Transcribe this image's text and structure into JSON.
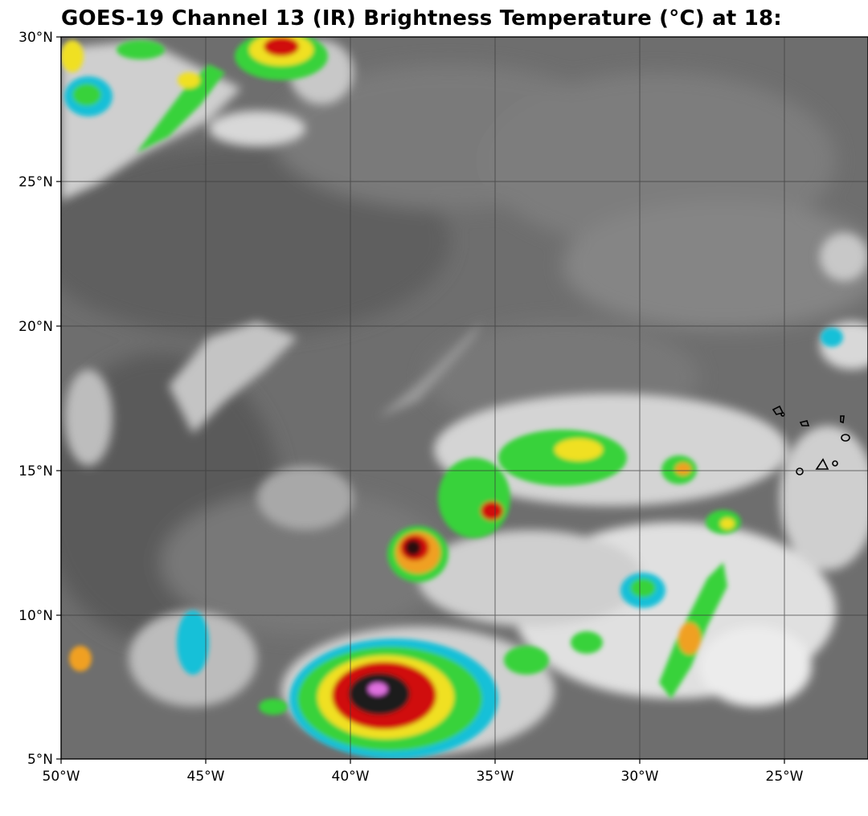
{
  "title": "GOES-19 Channel 13 (IR) Brightness Temperature (°C) at 18:",
  "map": {
    "projection": "PlateCarree",
    "lon_range": [
      -50,
      -22
    ],
    "lat_range": [
      5,
      30
    ],
    "gridlines": true,
    "colormap": "grayscale warm, rainbow cold (green-yellow-red-black-magenta)",
    "lat_ticks": [
      {
        "value": 30,
        "label": "30°N"
      },
      {
        "value": 25,
        "label": "25°N"
      },
      {
        "value": 20,
        "label": "20°N"
      },
      {
        "value": 15,
        "label": "15°N"
      },
      {
        "value": 10,
        "label": "10°N"
      },
      {
        "value": 5,
        "label": "5°N"
      }
    ],
    "lon_ticks": [
      {
        "value": -50,
        "label": "50°W"
      },
      {
        "value": -45,
        "label": "45°W"
      },
      {
        "value": -40,
        "label": "40°W"
      },
      {
        "value": -35,
        "label": "35°W"
      },
      {
        "value": -30,
        "label": "30°W"
      },
      {
        "value": -25,
        "label": "25°W"
      }
    ],
    "colors": {
      "background_gray": "#6e6e6e",
      "cloud_white": "#e6e6e6",
      "cold_green": "#39d23a",
      "cold_yellow": "#f0e020",
      "cold_red": "#d01010",
      "cold_black": "#1a1a1a",
      "cold_magenta": "#e070e0",
      "cold_cyan": "#18c0d8"
    }
  }
}
